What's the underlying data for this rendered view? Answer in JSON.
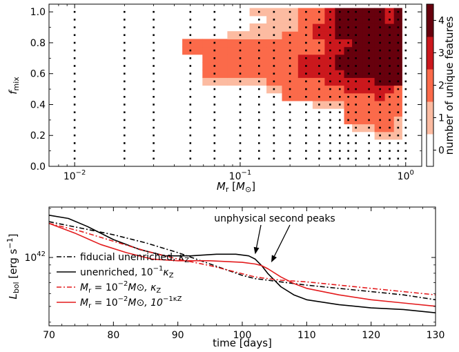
{
  "chart_data": [
    {
      "type": "heatmap",
      "xlabel": "M_r [M_⊙]",
      "xlabel_main": "M",
      "xlabel_sub": "r",
      "xlabel_unit_open": " [",
      "xlabel_unit_main": "M",
      "xlabel_unit_sub": "⊙",
      "xlabel_unit_close": "]",
      "ylabel": "f_mix",
      "ylabel_main": "f",
      "ylabel_sub": "mix",
      "xscale": "log",
      "xlim": [
        0.007,
        1.25
      ],
      "ylim": [
        0.0,
        1.05
      ],
      "x_ticks": [
        {
          "value": 0.01,
          "base": "10",
          "exp": "−2"
        },
        {
          "value": 0.1,
          "base": "10",
          "exp": "−1"
        },
        {
          "value": 1,
          "base": "10",
          "exp": "0"
        }
      ],
      "y_ticks": [
        {
          "value": 0.0,
          "label": "0.0"
        },
        {
          "value": 0.2,
          "label": "0.2"
        },
        {
          "value": 0.4,
          "label": "0.4"
        },
        {
          "value": 0.6,
          "label": "0.6"
        },
        {
          "value": 0.8,
          "label": "0.8"
        },
        {
          "value": 1.0,
          "label": "1.0"
        }
      ],
      "x_grid": [
        0.01,
        0.02,
        0.03,
        0.04,
        0.05,
        0.07,
        0.1,
        0.13,
        0.16,
        0.2,
        0.25,
        0.3,
        0.35,
        0.4,
        0.45,
        0.5,
        0.6,
        0.7,
        0.8,
        0.9,
        1.0
      ],
      "y_grid": [
        0.05,
        0.1,
        0.15,
        0.2,
        0.25,
        0.3,
        0.35,
        0.4,
        0.45,
        0.5,
        0.55,
        0.6,
        0.65,
        0.7,
        0.75,
        0.8,
        0.85,
        0.9,
        0.95,
        1.0
      ],
      "marker_columns": [
        0.01,
        0.02,
        0.03,
        0.05,
        0.07,
        0.1,
        0.13,
        0.16,
        0.2,
        0.25,
        0.3,
        0.35,
        0.4,
        0.45,
        0.5,
        0.6,
        0.7,
        0.8,
        0.9,
        1.0
      ],
      "marker_rows": [
        0.05,
        0.1,
        0.15,
        0.2,
        0.25,
        0.3,
        0.35,
        0.4,
        0.45,
        0.5,
        0.55,
        0.6,
        0.65,
        0.7,
        0.75,
        0.8,
        0.85,
        0.9,
        0.95,
        1.0
      ],
      "values": [
        [
          0,
          0,
          0,
          0,
          0,
          0,
          0,
          0,
          0,
          0,
          0,
          0,
          0,
          0,
          0,
          0,
          0,
          0,
          0,
          0
        ],
        [
          0,
          0,
          0,
          0,
          0,
          0,
          0,
          0,
          0,
          0,
          0,
          0,
          0,
          0,
          0,
          0,
          0,
          0,
          0,
          0
        ],
        [
          0,
          0,
          0,
          0,
          0,
          0,
          0,
          0,
          0,
          0,
          0,
          0,
          0,
          0,
          0,
          0,
          0,
          0,
          0,
          0
        ],
        [
          0,
          0,
          0,
          0,
          0,
          0,
          0,
          0,
          0,
          0,
          0,
          0,
          0,
          0,
          0,
          0,
          0,
          1,
          1,
          1
        ],
        [
          0,
          0,
          0,
          0,
          0,
          0,
          0,
          0,
          0,
          0,
          0,
          0,
          0,
          0,
          0,
          1,
          1,
          2,
          2,
          1
        ],
        [
          0,
          0,
          0,
          0,
          0,
          0,
          0,
          0,
          0,
          0,
          0,
          0,
          0,
          0,
          2,
          2,
          2,
          2,
          2,
          1
        ],
        [
          0,
          0,
          0,
          0,
          0,
          0,
          0,
          0,
          0,
          0,
          0,
          0,
          0,
          0,
          2,
          2,
          2,
          2,
          2,
          2
        ],
        [
          0,
          0,
          0,
          0,
          0,
          0,
          0,
          0,
          0,
          0,
          0,
          1,
          1,
          1,
          2,
          2,
          2,
          2,
          2,
          2
        ],
        [
          0,
          0,
          0,
          0,
          0,
          0,
          0,
          0,
          0,
          2,
          2,
          2,
          2,
          2,
          2,
          2,
          2,
          3,
          2,
          2
        ],
        [
          0,
          0,
          0,
          0,
          0,
          0,
          0,
          0,
          1,
          2,
          2,
          2,
          2,
          2,
          3,
          3,
          3,
          3,
          3,
          2
        ],
        [
          0,
          0,
          0,
          0,
          0,
          1,
          1,
          1,
          2,
          2,
          2,
          2,
          3,
          3,
          3,
          3,
          3,
          4,
          4,
          4
        ],
        [
          0,
          0,
          0,
          0,
          0,
          2,
          2,
          2,
          2,
          2,
          3,
          3,
          3,
          3,
          4,
          4,
          4,
          4,
          4,
          4
        ],
        [
          0,
          0,
          0,
          0,
          0,
          2,
          2,
          2,
          2,
          2,
          3,
          3,
          3,
          4,
          4,
          4,
          4,
          4,
          4,
          4
        ],
        [
          0,
          0,
          0,
          0,
          0,
          2,
          2,
          2,
          2,
          2,
          3,
          3,
          3,
          4,
          4,
          4,
          4,
          4,
          4,
          4
        ],
        [
          0,
          0,
          0,
          0,
          2,
          2,
          2,
          2,
          2,
          2,
          2,
          2,
          3,
          3,
          4,
          4,
          4,
          4,
          4,
          4
        ],
        [
          0,
          0,
          0,
          0,
          2,
          2,
          2,
          2,
          2,
          2,
          2,
          2,
          3,
          3,
          3,
          4,
          4,
          4,
          4,
          4
        ],
        [
          0,
          0,
          0,
          0,
          0,
          0,
          1,
          1,
          1,
          2,
          2,
          3,
          3,
          4,
          4,
          4,
          4,
          4,
          4,
          4
        ],
        [
          0,
          0,
          0,
          0,
          0,
          0,
          0,
          1,
          1,
          1,
          2,
          3,
          3,
          4,
          4,
          4,
          4,
          4,
          4,
          4
        ],
        [
          0,
          0,
          0,
          0,
          0,
          0,
          0,
          0,
          1,
          1,
          2,
          2,
          3,
          4,
          4,
          4,
          4,
          4,
          3,
          4
        ],
        [
          0,
          0,
          0,
          0,
          0,
          0,
          0,
          1,
          1,
          1,
          2,
          2,
          3,
          4,
          4,
          4,
          4,
          4,
          3,
          4
        ]
      ],
      "colorbar": {
        "label": "number of unique features",
        "ticks": [
          "0",
          "1",
          "2",
          "3",
          "4"
        ],
        "colors": [
          "#ffffff",
          "#fcbba1",
          "#fb6a4a",
          "#cb181d",
          "#67000d"
        ]
      }
    },
    {
      "type": "line",
      "xlabel": "time [days]",
      "ylabel": "L_bol [erg s^-1]",
      "ylabel_main": "L",
      "ylabel_sub": "bol",
      "ylabel_unit": " [erg s",
      "ylabel_unit_exp": "−1",
      "ylabel_unit_close": "]",
      "xlim": [
        70,
        130
      ],
      "yscale": "log",
      "ylim_log10": [
        41.58,
        42.31
      ],
      "x_ticks": [
        "70",
        "80",
        "90",
        "100",
        "110",
        "120",
        "130"
      ],
      "y_tick": {
        "value_log10": 42,
        "base": "10",
        "exp": "42"
      },
      "legend_position": "lower-left",
      "annotation": "unphysical second peaks",
      "annotation_targets": [
        {
          "x": 102.0,
          "log10_L": 42.02
        },
        {
          "x": 104.5,
          "log10_L": 41.97
        }
      ],
      "series": [
        {
          "name": "fiducial unenriched, κ_Z",
          "legend_parts": [
            "fiducial unenriched, ",
            "κ",
            "Z",
            "",
            "",
            ""
          ],
          "color": "#000000",
          "dash": "dashdot",
          "x": [
            70,
            75,
            80,
            85,
            90,
            95,
            100,
            102,
            104,
            106,
            110,
            115,
            120,
            125,
            130
          ],
          "log10_L": [
            42.22,
            42.18,
            42.14,
            42.09,
            42.03,
            41.96,
            41.89,
            41.87,
            41.86,
            41.85,
            41.83,
            41.81,
            41.79,
            41.77,
            41.74
          ]
        },
        {
          "name": "unenriched, 10^-1 κ_Z",
          "legend_parts": [
            "unenriched, 10",
            "−1",
            "κ",
            "Z",
            "",
            ""
          ],
          "color": "#000000",
          "dash": "solid",
          "x": [
            70,
            73,
            76,
            80,
            84,
            88,
            92,
            96,
            99,
            101,
            102,
            103,
            104,
            106,
            108,
            110,
            115,
            120,
            125,
            130
          ],
          "log10_L": [
            42.26,
            42.24,
            42.19,
            42.11,
            42.05,
            42.01,
            42.01,
            42.02,
            42.02,
            42.01,
            41.99,
            41.95,
            41.9,
            41.82,
            41.77,
            41.74,
            41.71,
            41.69,
            41.68,
            41.66
          ]
        },
        {
          "name": "M_r = 10^-2 M_⊙, κ_Z",
          "legend_parts": [
            "M",
            "r",
            " = 10",
            "−2",
            "M⊙, κ",
            "Z"
          ],
          "color": "#e31a1c",
          "dash": "dashdot",
          "x": [
            70,
            75,
            80,
            85,
            90,
            95,
            100,
            102,
            104,
            106,
            110,
            115,
            120,
            125,
            130
          ],
          "log10_L": [
            42.21,
            42.16,
            42.1,
            42.04,
            41.99,
            41.95,
            41.9,
            41.88,
            41.87,
            41.86,
            41.85,
            41.83,
            41.81,
            41.79,
            41.77
          ]
        },
        {
          "name": "M_r = 10^-2 M_⊙, 10^-1 κ_Z",
          "legend_parts": [
            "M",
            "r",
            " = 10",
            "−2",
            "M⊙, 10",
            "−1κZ"
          ],
          "color": "#e31a1c",
          "dash": "solid",
          "x": [
            70,
            74,
            78,
            82,
            86,
            90,
            95,
            100,
            102,
            103,
            104,
            106,
            108,
            110,
            115,
            120,
            125,
            130
          ],
          "log10_L": [
            42.21,
            42.15,
            42.08,
            42.03,
            41.99,
            41.98,
            41.98,
            41.97,
            41.96,
            41.95,
            41.93,
            41.88,
            41.84,
            41.81,
            41.77,
            41.74,
            41.72,
            41.7
          ]
        }
      ]
    }
  ]
}
